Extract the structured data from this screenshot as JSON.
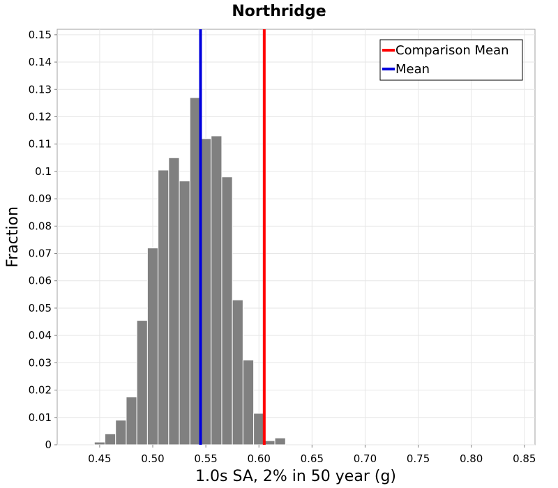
{
  "chart_data": {
    "type": "bar",
    "title": "Northridge",
    "xlabel": "1.0s SA, 2% in 50 year (g)",
    "ylabel": "Fraction",
    "xlim": [
      0.41,
      0.86
    ],
    "ylim": [
      0,
      0.152
    ],
    "bin_width": 0.01,
    "xticks": [
      "0.45",
      "0.50",
      "0.55",
      "0.60",
      "0.65",
      "0.70",
      "0.75",
      "0.80",
      "0.85"
    ],
    "yticks": [
      "0",
      "0.01",
      "0.02",
      "0.03",
      "0.04",
      "0.05",
      "0.06",
      "0.07",
      "0.08",
      "0.09",
      "0.1",
      "0.11",
      "0.12",
      "0.13",
      "0.14",
      "0.15"
    ],
    "bins": [
      0.45,
      0.46,
      0.47,
      0.48,
      0.49,
      0.5,
      0.51,
      0.52,
      0.53,
      0.54,
      0.55,
      0.56,
      0.57,
      0.58,
      0.59,
      0.6,
      0.61,
      0.62
    ],
    "values": [
      0.001,
      0.004,
      0.009,
      0.0175,
      0.0455,
      0.072,
      0.1005,
      0.105,
      0.0965,
      0.127,
      0.112,
      0.113,
      0.098,
      0.053,
      0.031,
      0.0115,
      0.0015,
      0.0025
    ],
    "grid": true,
    "legend": {
      "placement": "top-right"
    },
    "lines": [
      {
        "name": "Comparison Mean",
        "x": 0.605,
        "color": "#ff0000"
      },
      {
        "name": "Mean",
        "x": 0.545,
        "color": "#0000dd"
      }
    ],
    "bar_color": "#808080"
  }
}
